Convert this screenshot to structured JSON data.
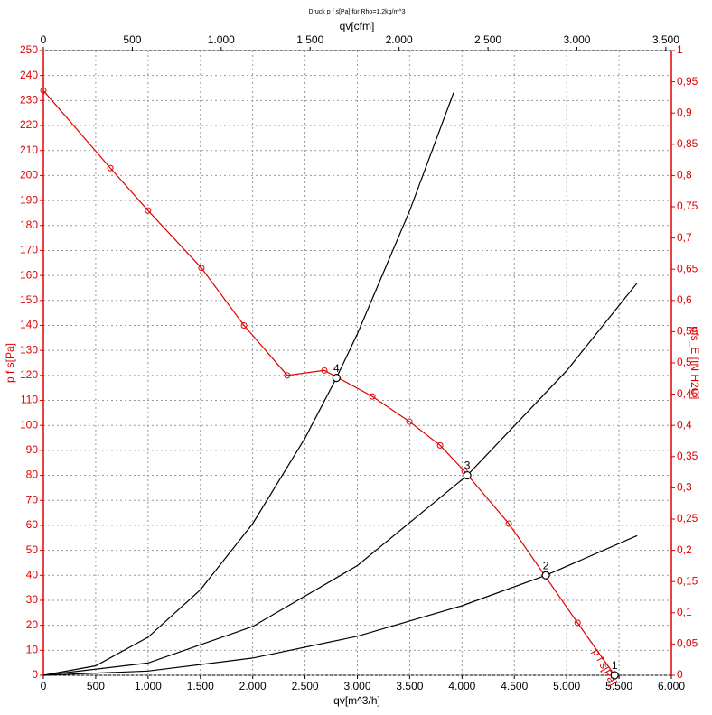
{
  "chart_data": {
    "type": "line",
    "title": "Druck p f s[Pa] für Rho=1,2kg/m^3",
    "xlabel": "qv[m^3/h]",
    "x2label": "qv[cfm]",
    "ylabel": "p f s[Pa]",
    "y2label": "pfs_E [IN H2O]",
    "xlim": [
      0,
      6000
    ],
    "xticks": [
      0,
      500,
      {
        "value": 1000,
        "label": "1.000"
      },
      {
        "value": 1500,
        "label": "1.500"
      },
      {
        "value": 2000,
        "label": "2.000"
      },
      {
        "value": 2500,
        "label": "2.500"
      },
      {
        "value": 3000,
        "label": "3.000"
      },
      {
        "value": 3500,
        "label": "3.500"
      },
      {
        "value": 4000,
        "label": "4.000"
      },
      {
        "value": 4500,
        "label": "4.500"
      },
      {
        "value": 5000,
        "label": "5.000"
      },
      {
        "value": 5500,
        "label": "5.500"
      },
      {
        "value": 6000,
        "label": "6.000"
      }
    ],
    "x2lim": [
      0,
      3531
    ],
    "x2ticks": [
      0,
      500,
      {
        "value": 1000,
        "label": "1.000"
      },
      {
        "value": 1500,
        "label": "1.500"
      },
      {
        "value": 2000,
        "label": "2.000"
      },
      {
        "value": 2500,
        "label": "2.500"
      },
      {
        "value": 3000,
        "label": "3.000"
      },
      {
        "value": 3500,
        "label": "3.500"
      }
    ],
    "ylim": [
      0,
      250
    ],
    "yticks": [
      0,
      10,
      20,
      30,
      40,
      50,
      60,
      70,
      80,
      90,
      100,
      110,
      120,
      130,
      140,
      150,
      160,
      170,
      180,
      190,
      200,
      210,
      220,
      230,
      240,
      250
    ],
    "y2lim": [
      0,
      1
    ],
    "y2ticks": [
      0,
      {
        "value": 0.05,
        "label": "0,05"
      },
      {
        "value": 0.1,
        "label": "0,1"
      },
      {
        "value": 0.15,
        "label": "0,15"
      },
      {
        "value": 0.2,
        "label": "0,2"
      },
      {
        "value": 0.25,
        "label": "0,25"
      },
      {
        "value": 0.3,
        "label": "0,3"
      },
      {
        "value": 0.35,
        "label": "0,35"
      },
      {
        "value": 0.4,
        "label": "0,4"
      },
      {
        "value": 0.45,
        "label": "0,45"
      },
      {
        "value": 0.5,
        "label": "0,5"
      },
      {
        "value": 0.55,
        "label": "0,55"
      },
      {
        "value": 0.6,
        "label": "0,6"
      },
      {
        "value": 0.65,
        "label": "0,65"
      },
      {
        "value": 0.7,
        "label": "0,7"
      },
      {
        "value": 0.75,
        "label": "0,75"
      },
      {
        "value": 0.8,
        "label": "0,8"
      },
      {
        "value": 0.85,
        "label": "0,85"
      },
      {
        "value": 0.9,
        "label": "0,9"
      },
      {
        "value": 0.95,
        "label": "0,95"
      },
      1
    ],
    "grid": true,
    "axis_color_left": "#e00000",
    "series": [
      {
        "name": "p f s[Pa]",
        "color": "#e00000",
        "markers": true,
        "x": [
          0,
          640,
          1000,
          1510,
          1917,
          2330,
          2685,
          3143,
          3497,
          3791,
          4024,
          4447,
          5104,
          5458
        ],
        "values": [
          234,
          203,
          186,
          163,
          140,
          120,
          122,
          111.6,
          101.5,
          92,
          81.6,
          60.7,
          21,
          0
        ]
      },
      {
        "color": "#000000",
        "x": [
          0,
          500,
          1000,
          1500,
          2000,
          2500,
          2800,
          3000,
          3500,
          3920
        ],
        "values": [
          0,
          3.8,
          15.2,
          34.2,
          60.7,
          94.9,
          119,
          136.6,
          185.9,
          233.2
        ]
      },
      {
        "color": "#000000",
        "x": [
          0,
          1000,
          2000,
          3000,
          4050,
          5000,
          5674
        ],
        "values": [
          0,
          4.9,
          19.5,
          43.9,
          80,
          121.9,
          157
        ]
      },
      {
        "color": "#000000",
        "x": [
          0,
          1000,
          2000,
          3000,
          4000,
          4801,
          5674
        ],
        "values": [
          0,
          1.7,
          6.9,
          15.6,
          27.8,
          40,
          55.9
        ]
      }
    ],
    "operating_points": {
      "labels": [
        "1",
        "2",
        "3",
        "4"
      ],
      "x": [
        5458,
        4801,
        4050,
        2800
      ],
      "values": [
        0,
        40,
        80,
        119
      ]
    }
  }
}
